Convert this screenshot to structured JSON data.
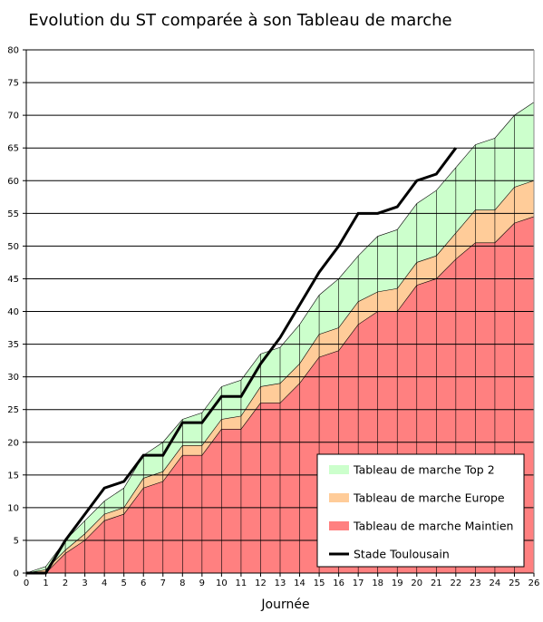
{
  "chart_data": {
    "type": "area",
    "title": "Evolution du ST comparée à son Tableau de marche",
    "xlabel": "Journée",
    "ylabel": "",
    "xlim": [
      0,
      26
    ],
    "ylim": [
      0,
      80
    ],
    "x": [
      0,
      1,
      2,
      3,
      4,
      5,
      6,
      7,
      8,
      9,
      10,
      11,
      12,
      13,
      14,
      15,
      16,
      17,
      18,
      19,
      20,
      21,
      22,
      23,
      24,
      25,
      26
    ],
    "yticks": [
      0,
      5,
      10,
      15,
      20,
      25,
      30,
      35,
      40,
      45,
      50,
      55,
      60,
      65,
      70,
      75,
      80
    ],
    "grid": true,
    "legend_position": "bottom-right",
    "series": [
      {
        "name": "Tableau de marche Top 2",
        "kind": "area",
        "color": "#ccffcc",
        "values": [
          0,
          1,
          5,
          8,
          11,
          13,
          18,
          20,
          23.5,
          24.5,
          28.5,
          29.5,
          33.5,
          34.5,
          38,
          42.5,
          45,
          48.5,
          51.5,
          52.5,
          56.5,
          58.5,
          62,
          65.5,
          66.5,
          70,
          72
        ]
      },
      {
        "name": "Tableau de marche Europe",
        "kind": "area",
        "color": "#ffcc99",
        "values": [
          0,
          0.5,
          3.5,
          6,
          9,
          10,
          14.5,
          15.5,
          19.5,
          19.5,
          23.5,
          24,
          28.5,
          29,
          32,
          36.5,
          37.5,
          41.5,
          43,
          43.5,
          47.5,
          48.5,
          52,
          55.5,
          55.5,
          59,
          60
        ]
      },
      {
        "name": "Tableau de marche Maintien",
        "kind": "area",
        "color": "#ff8080",
        "values": [
          0,
          0,
          3,
          5,
          8,
          9,
          13,
          14,
          18,
          18,
          22,
          22,
          26,
          26,
          29,
          33,
          34,
          38,
          40,
          40,
          44,
          45,
          48,
          50.5,
          50.5,
          53.5,
          54.5
        ]
      },
      {
        "name": "Stade Toulousain",
        "kind": "line",
        "color": "#000000",
        "values": [
          0,
          0,
          5,
          9,
          13,
          14,
          18,
          18,
          23,
          23,
          27,
          27,
          32,
          36,
          41,
          46,
          50,
          55,
          55,
          56,
          60,
          61,
          65,
          null,
          null,
          null,
          null
        ]
      }
    ]
  }
}
